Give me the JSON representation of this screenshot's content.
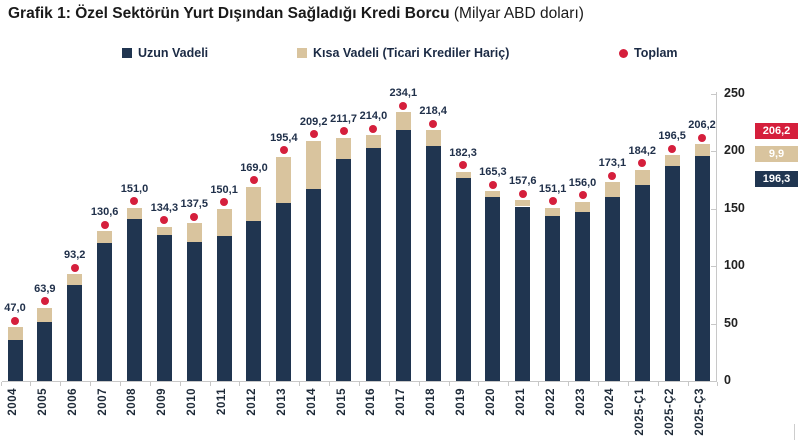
{
  "title": {
    "main": "Grafik 1: Özel Sektörün Yurt Dışından Sağladığı Kredi Borcu",
    "suffix": "(Milyar ABD doları)"
  },
  "legend": {
    "position": "top",
    "items": [
      {
        "label": "Uzun Vadeli",
        "swatch": "square",
        "color": "#203550"
      },
      {
        "label": "Kısa Vadeli (Ticari Krediler Hariç)",
        "swatch": "square",
        "color": "#d9c49e"
      },
      {
        "label": "Toplam",
        "swatch": "dot",
        "color": "#d51f3c"
      }
    ]
  },
  "chart_data": {
    "type": "bar",
    "stacked": true,
    "title": "Grafik 1: Özel Sektörün Yurt Dışından Sağladığı Kredi Borcu",
    "unit": "Milyar ABD doları",
    "categories": [
      "2004",
      "2005",
      "2006",
      "2007",
      "2008",
      "2009",
      "2010",
      "2011",
      "2012",
      "2013",
      "2014",
      "2015",
      "2016",
      "2017",
      "2018",
      "2019",
      "2020",
      "2021",
      "2022",
      "2023",
      "2024",
      "2025-Ç1",
      "2025-Ç2",
      "2025-Ç3"
    ],
    "series": [
      {
        "name": "Uzun Vadeli",
        "color": "#203550",
        "values": [
          36.0,
          51.0,
          84.0,
          120.0,
          141.0,
          127.0,
          121.0,
          126.5,
          139.0,
          155.0,
          167.0,
          193.0,
          203.0,
          219.0,
          205.0,
          177.0,
          160.0,
          152.0,
          144.0,
          147.5,
          160.0,
          171.0,
          187.0,
          196.3
        ]
      },
      {
        "name": "Kısa Vadeli (Ticari Krediler Hariç)",
        "color": "#d9c49e",
        "values": [
          11.0,
          12.9,
          9.2,
          10.6,
          10.0,
          7.3,
          16.5,
          23.6,
          30.0,
          40.4,
          42.2,
          18.7,
          11.0,
          15.1,
          13.4,
          5.3,
          5.3,
          5.6,
          7.1,
          8.5,
          13.1,
          13.2,
          9.5,
          9.9
        ]
      }
    ],
    "totals": [
      47.0,
      63.9,
      93.2,
      130.6,
      151.0,
      134.3,
      137.5,
      150.1,
      169.0,
      195.4,
      209.2,
      211.7,
      214.0,
      234.1,
      218.4,
      182.3,
      165.3,
      157.6,
      151.1,
      156.0,
      173.1,
      184.2,
      196.5,
      206.2
    ],
    "total_marker": {
      "series": "Toplam",
      "shape": "dot",
      "color": "#d51f3c"
    },
    "decimal_separator": ",",
    "y_axis": {
      "side": "right",
      "ticks": [
        0,
        50,
        100,
        150,
        200,
        250
      ],
      "ylim": [
        0,
        250
      ]
    },
    "grid": false,
    "xlabel": "",
    "ylabel": ""
  },
  "callouts": [
    {
      "text": "206,2",
      "series": "Toplam",
      "color": "#d51f3c"
    },
    {
      "text": "9,9",
      "series": "Kısa Vadeli (Ticari Krediler Hariç)",
      "color": "#d9c49e"
    },
    {
      "text": "196,3",
      "series": "Uzun Vadeli",
      "color": "#203550"
    }
  ]
}
